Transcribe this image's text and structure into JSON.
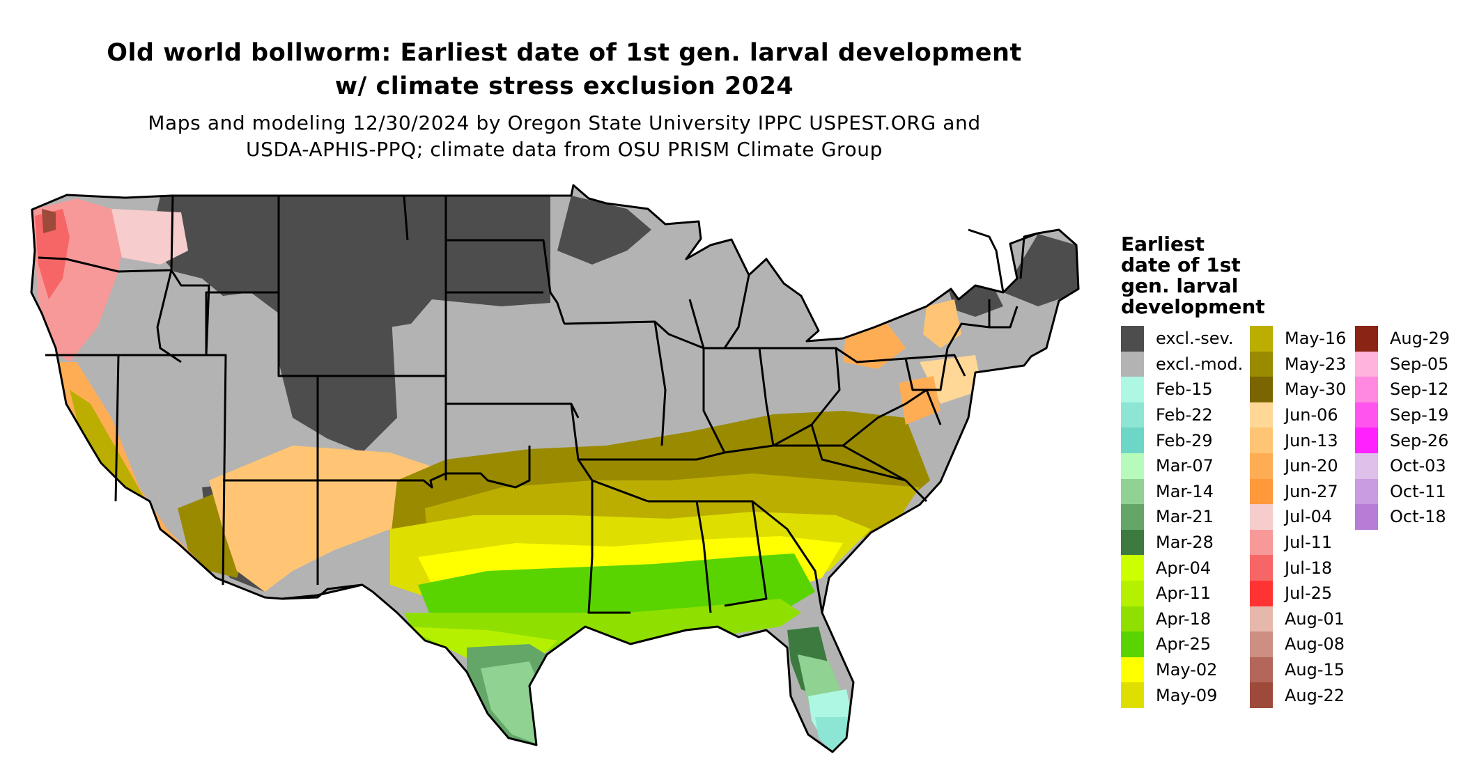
{
  "title": {
    "line1": "Old world bollworm: Earliest date of 1st gen. larval development",
    "line2": "w/ climate stress exclusion 2024"
  },
  "subtitle": {
    "line1": "Maps and modeling 12/30/2024 by Oregon State University IPPC USPEST.ORG and",
    "line2": "USDA-APHIS-PPQ; climate data from OSU PRISM Climate Group"
  },
  "legend": {
    "title_lines": [
      "Earliest",
      "date of 1st",
      "gen. larval",
      "development"
    ],
    "columns": [
      [
        {
          "label": "excl.-sev.",
          "color": "#4d4d4d"
        },
        {
          "label": "excl.-mod.",
          "color": "#b3b3b3"
        },
        {
          "label": "Feb-15",
          "color": "#aef7e3"
        },
        {
          "label": "Feb-22",
          "color": "#8de6d3"
        },
        {
          "label": "Feb-29",
          "color": "#6ed6c6"
        },
        {
          "label": "Mar-07",
          "color": "#b7fbbb"
        },
        {
          "label": "Mar-14",
          "color": "#8fd292"
        },
        {
          "label": "Mar-21",
          "color": "#63a667"
        },
        {
          "label": "Mar-28",
          "color": "#3d7a40"
        },
        {
          "label": "Apr-04",
          "color": "#ccff00"
        },
        {
          "label": "Apr-11",
          "color": "#b5f000"
        },
        {
          "label": "Apr-18",
          "color": "#8fe000"
        },
        {
          "label": "Apr-25",
          "color": "#5ad400"
        },
        {
          "label": "May-02",
          "color": "#ffff00"
        },
        {
          "label": "May-09",
          "color": "#dede00"
        }
      ],
      [
        {
          "label": "May-16",
          "color": "#bbae00"
        },
        {
          "label": "May-23",
          "color": "#9a8a00"
        },
        {
          "label": "May-30",
          "color": "#7a6500"
        },
        {
          "label": "Jun-06",
          "color": "#ffd898"
        },
        {
          "label": "Jun-13",
          "color": "#ffc574"
        },
        {
          "label": "Jun-20",
          "color": "#ffad55"
        },
        {
          "label": "Jun-27",
          "color": "#ff993a"
        },
        {
          "label": "Jul-04",
          "color": "#f7cccc"
        },
        {
          "label": "Jul-11",
          "color": "#f79999"
        },
        {
          "label": "Jul-18",
          "color": "#f76666"
        },
        {
          "label": "Jul-25",
          "color": "#ff3333"
        },
        {
          "label": "Aug-01",
          "color": "#e6b8ab"
        },
        {
          "label": "Aug-08",
          "color": "#cc8f82"
        },
        {
          "label": "Aug-15",
          "color": "#b36659"
        },
        {
          "label": "Aug-22",
          "color": "#9e4a3b"
        }
      ],
      [
        {
          "label": "Aug-29",
          "color": "#8a2414"
        },
        {
          "label": "Sep-05",
          "color": "#ffb3dd"
        },
        {
          "label": "Sep-12",
          "color": "#ff88e0"
        },
        {
          "label": "Sep-19",
          "color": "#ff55ee"
        },
        {
          "label": "Sep-26",
          "color": "#ff22ff"
        },
        {
          "label": "Oct-03",
          "color": "#dfc0ea"
        },
        {
          "label": "Oct-11",
          "color": "#c99be0"
        },
        {
          "label": "Oct-18",
          "color": "#b77cd6"
        }
      ]
    ]
  }
}
